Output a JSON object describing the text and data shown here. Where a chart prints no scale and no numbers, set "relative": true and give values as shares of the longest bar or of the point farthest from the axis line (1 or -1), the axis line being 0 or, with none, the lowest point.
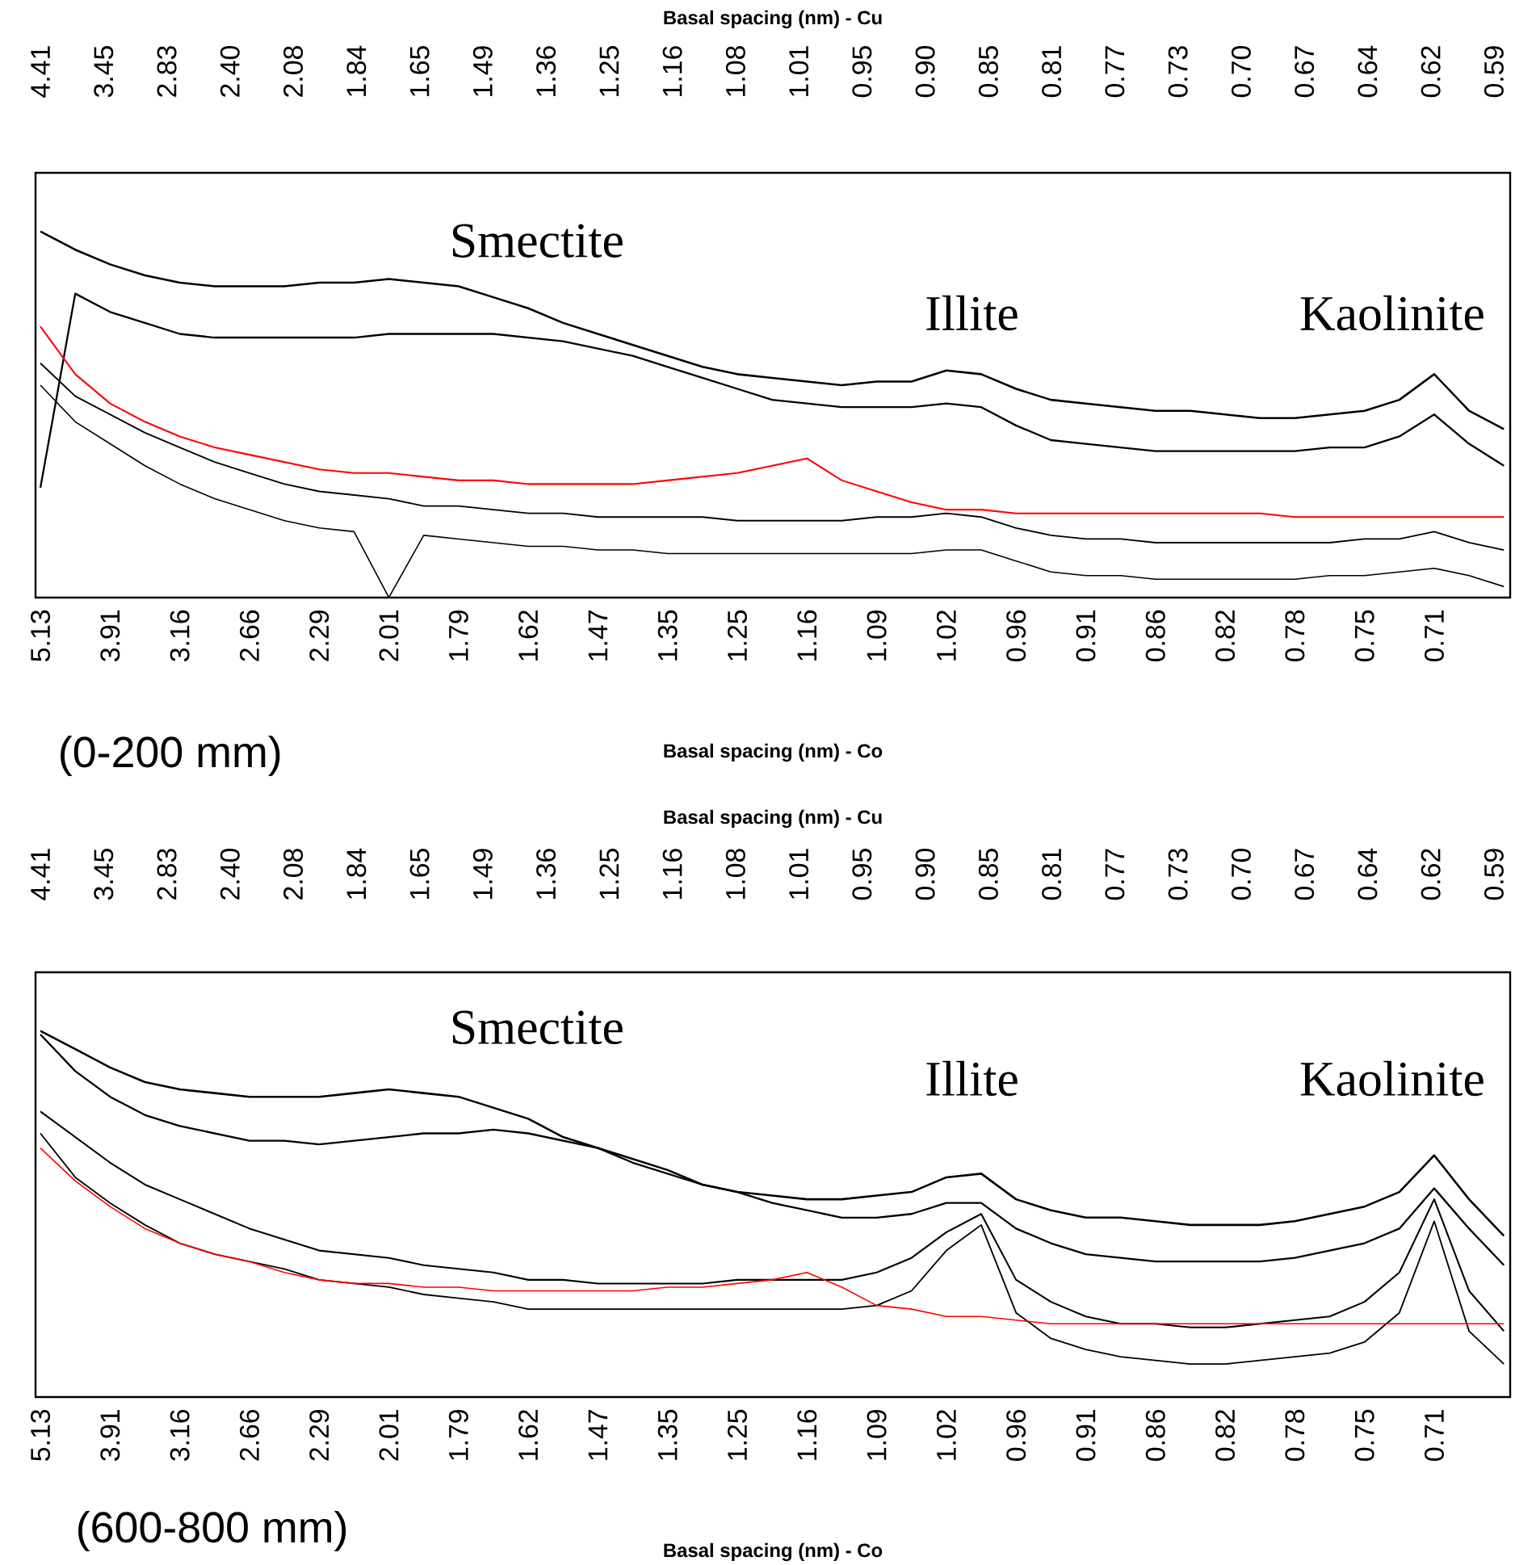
{
  "chart_data": [
    {
      "type": "line",
      "relative": true,
      "marker": "none",
      "tick_labels": "x",
      "xlabel": "Basal spacing (nm) - Co",
      "x2label": "Basal spacing (nm) - Cu",
      "categories": [
        "5.13",
        null,
        "3.91",
        null,
        "3.16",
        null,
        "2.66",
        null,
        "2.29",
        null,
        "2.01",
        null,
        "1.79",
        null,
        "1.62",
        null,
        "1.47",
        null,
        "1.35",
        null,
        "1.25",
        null,
        "1.16",
        null,
        "1.09",
        null,
        "1.02",
        null,
        "0.96",
        null,
        "0.91",
        null,
        "0.86",
        null,
        "0.82",
        null,
        "0.78",
        null,
        "0.75",
        null,
        "0.71",
        null,
        null
      ],
      "annotations": [
        "Smectite",
        "Illite",
        "Kaolinite",
        "(0-200 mm)",
        "4.41",
        "3.45",
        "2.83",
        "2.40",
        "2.08",
        "1.84",
        "1.65",
        "1.49",
        "1.36",
        "1.25",
        "1.16",
        "1.08",
        "1.01",
        "0.95",
        "0.90",
        "0.85",
        "0.81",
        "0.77",
        "0.73",
        "0.70",
        "0.67",
        "0.64",
        "0.62",
        "0.59"
      ],
      "series": [
        {
          "color": "#000000",
          "values": [
            1.0,
            0.95,
            0.91,
            0.88,
            0.86,
            0.85,
            0.85,
            0.85,
            0.86,
            0.86,
            0.87,
            0.86,
            0.85,
            0.82,
            0.79,
            0.75,
            0.72,
            0.69,
            0.66,
            0.63,
            0.61,
            0.6,
            0.59,
            0.58,
            0.59,
            0.59,
            0.62,
            0.61,
            0.57,
            0.54,
            0.53,
            0.52,
            0.51,
            0.51,
            0.5,
            0.49,
            0.49,
            0.5,
            0.51,
            0.54,
            0.61,
            0.51,
            0.46
          ]
        },
        {
          "color": "#000000",
          "values": [
            0.3,
            0.83,
            0.78,
            0.75,
            0.72,
            0.71,
            0.71,
            0.71,
            0.71,
            0.71,
            0.72,
            0.72,
            0.72,
            0.72,
            0.71,
            0.7,
            0.68,
            0.66,
            0.63,
            0.6,
            0.57,
            0.54,
            0.53,
            0.52,
            0.52,
            0.52,
            0.53,
            0.52,
            0.47,
            0.43,
            0.42,
            0.41,
            0.4,
            0.4,
            0.4,
            0.4,
            0.4,
            0.41,
            0.41,
            0.44,
            0.5,
            0.42,
            0.36
          ]
        },
        {
          "color": "#ff0000",
          "values": [
            0.74,
            0.61,
            0.53,
            0.48,
            0.44,
            0.41,
            0.39,
            0.37,
            0.35,
            0.34,
            0.34,
            0.33,
            0.32,
            0.32,
            0.31,
            0.31,
            0.31,
            0.31,
            0.32,
            0.33,
            0.34,
            0.36,
            0.38,
            0.32,
            0.29,
            0.26,
            0.24,
            0.24,
            0.23,
            0.23,
            0.23,
            0.23,
            0.23,
            0.23,
            0.23,
            0.23,
            0.22,
            0.22,
            0.22,
            0.22,
            0.22,
            0.22,
            0.22
          ]
        },
        {
          "color": "#000000",
          "values": [
            0.64,
            0.55,
            0.5,
            0.45,
            0.41,
            0.37,
            0.34,
            0.31,
            0.29,
            0.28,
            0.27,
            0.25,
            0.25,
            0.24,
            0.23,
            0.23,
            0.22,
            0.22,
            0.22,
            0.22,
            0.21,
            0.21,
            0.21,
            0.21,
            0.22,
            0.22,
            0.23,
            0.22,
            0.19,
            0.17,
            0.16,
            0.16,
            0.15,
            0.15,
            0.15,
            0.15,
            0.15,
            0.15,
            0.16,
            0.16,
            0.18,
            0.15,
            0.13
          ]
        },
        {
          "color": "#000000",
          "values": [
            0.58,
            0.48,
            0.42,
            0.36,
            0.31,
            0.27,
            0.24,
            0.21,
            0.19,
            0.18,
            0.0,
            0.17,
            0.16,
            0.15,
            0.14,
            0.14,
            0.13,
            0.13,
            0.12,
            0.12,
            0.12,
            0.12,
            0.12,
            0.12,
            0.12,
            0.12,
            0.13,
            0.13,
            0.1,
            0.07,
            0.06,
            0.06,
            0.05,
            0.05,
            0.05,
            0.05,
            0.05,
            0.06,
            0.06,
            0.07,
            0.08,
            0.06,
            0.03
          ]
        }
      ]
    },
    {
      "type": "line",
      "relative": true,
      "marker": "none",
      "tick_labels": "x",
      "xlabel": "Basal spacing (nm) - Co",
      "x2label": "Basal spacing (nm) - Cu",
      "categories": [
        "5.13",
        null,
        "3.91",
        null,
        "3.16",
        null,
        "2.66",
        null,
        "2.29",
        null,
        "2.01",
        null,
        "1.79",
        null,
        "1.62",
        null,
        "1.47",
        null,
        "1.35",
        null,
        "1.25",
        null,
        "1.16",
        null,
        "1.09",
        null,
        "1.02",
        null,
        "0.96",
        null,
        "0.91",
        null,
        "0.86",
        null,
        "0.82",
        null,
        "0.78",
        null,
        "0.75",
        null,
        "0.71",
        null,
        null
      ],
      "annotations": [
        "Smectite",
        "Illite",
        "Kaolinite",
        "(600-800 mm)",
        "4.41",
        "3.45",
        "2.83",
        "2.40",
        "2.08",
        "1.84",
        "1.65",
        "1.49",
        "1.36",
        "1.25",
        "1.16",
        "1.08",
        "1.01",
        "0.95",
        "0.90",
        "0.85",
        "0.81",
        "0.77",
        "0.73",
        "0.70",
        "0.67",
        "0.64",
        "0.62",
        "0.59"
      ],
      "series": [
        {
          "color": "#000000",
          "values": [
            1.0,
            0.95,
            0.9,
            0.86,
            0.84,
            0.83,
            0.82,
            0.82,
            0.82,
            0.83,
            0.84,
            0.83,
            0.82,
            0.79,
            0.76,
            0.71,
            0.68,
            0.65,
            0.62,
            0.58,
            0.56,
            0.55,
            0.54,
            0.54,
            0.55,
            0.56,
            0.6,
            0.61,
            0.54,
            0.51,
            0.49,
            0.49,
            0.48,
            0.47,
            0.47,
            0.47,
            0.48,
            0.5,
            0.52,
            0.56,
            0.66,
            0.54,
            0.44
          ]
        },
        {
          "color": "#000000",
          "values": [
            0.99,
            0.89,
            0.82,
            0.77,
            0.74,
            0.72,
            0.7,
            0.7,
            0.69,
            0.7,
            0.71,
            0.72,
            0.72,
            0.73,
            0.72,
            0.7,
            0.68,
            0.64,
            0.61,
            0.58,
            0.56,
            0.53,
            0.51,
            0.49,
            0.49,
            0.5,
            0.53,
            0.53,
            0.46,
            0.42,
            0.39,
            0.38,
            0.37,
            0.37,
            0.37,
            0.37,
            0.38,
            0.4,
            0.42,
            0.46,
            0.57,
            0.46,
            0.36
          ]
        },
        {
          "color": "#000000",
          "values": [
            0.78,
            0.71,
            0.64,
            0.58,
            0.54,
            0.5,
            0.46,
            0.43,
            0.4,
            0.39,
            0.38,
            0.36,
            0.35,
            0.34,
            0.32,
            0.32,
            0.31,
            0.31,
            0.31,
            0.31,
            0.32,
            0.32,
            0.32,
            0.32,
            0.34,
            0.38,
            0.45,
            0.5,
            0.32,
            0.26,
            0.22,
            0.2,
            0.2,
            0.19,
            0.19,
            0.2,
            0.21,
            0.22,
            0.26,
            0.34,
            0.54,
            0.29,
            0.18
          ]
        },
        {
          "color": "#000000",
          "values": [
            0.72,
            0.6,
            0.53,
            0.47,
            0.42,
            0.39,
            0.37,
            0.35,
            0.32,
            0.31,
            0.3,
            0.28,
            0.27,
            0.26,
            0.24,
            0.24,
            0.24,
            0.24,
            0.24,
            0.24,
            0.24,
            0.24,
            0.24,
            0.24,
            0.25,
            0.29,
            0.4,
            0.47,
            0.23,
            0.16,
            0.13,
            0.11,
            0.1,
            0.09,
            0.09,
            0.1,
            0.11,
            0.12,
            0.15,
            0.23,
            0.48,
            0.18,
            0.09
          ]
        },
        {
          "color": "#ff0000",
          "values": [
            0.68,
            0.59,
            0.52,
            0.46,
            0.42,
            0.39,
            0.37,
            0.34,
            0.32,
            0.31,
            0.31,
            0.3,
            0.3,
            0.29,
            0.29,
            0.29,
            0.29,
            0.29,
            0.3,
            0.3,
            0.31,
            0.32,
            0.34,
            0.3,
            0.25,
            0.24,
            0.22,
            0.22,
            0.21,
            0.2,
            0.2,
            0.2,
            0.2,
            0.2,
            0.2,
            0.2,
            0.2,
            0.2,
            0.2,
            0.2,
            0.2,
            0.2,
            0.2
          ]
        }
      ]
    }
  ]
}
